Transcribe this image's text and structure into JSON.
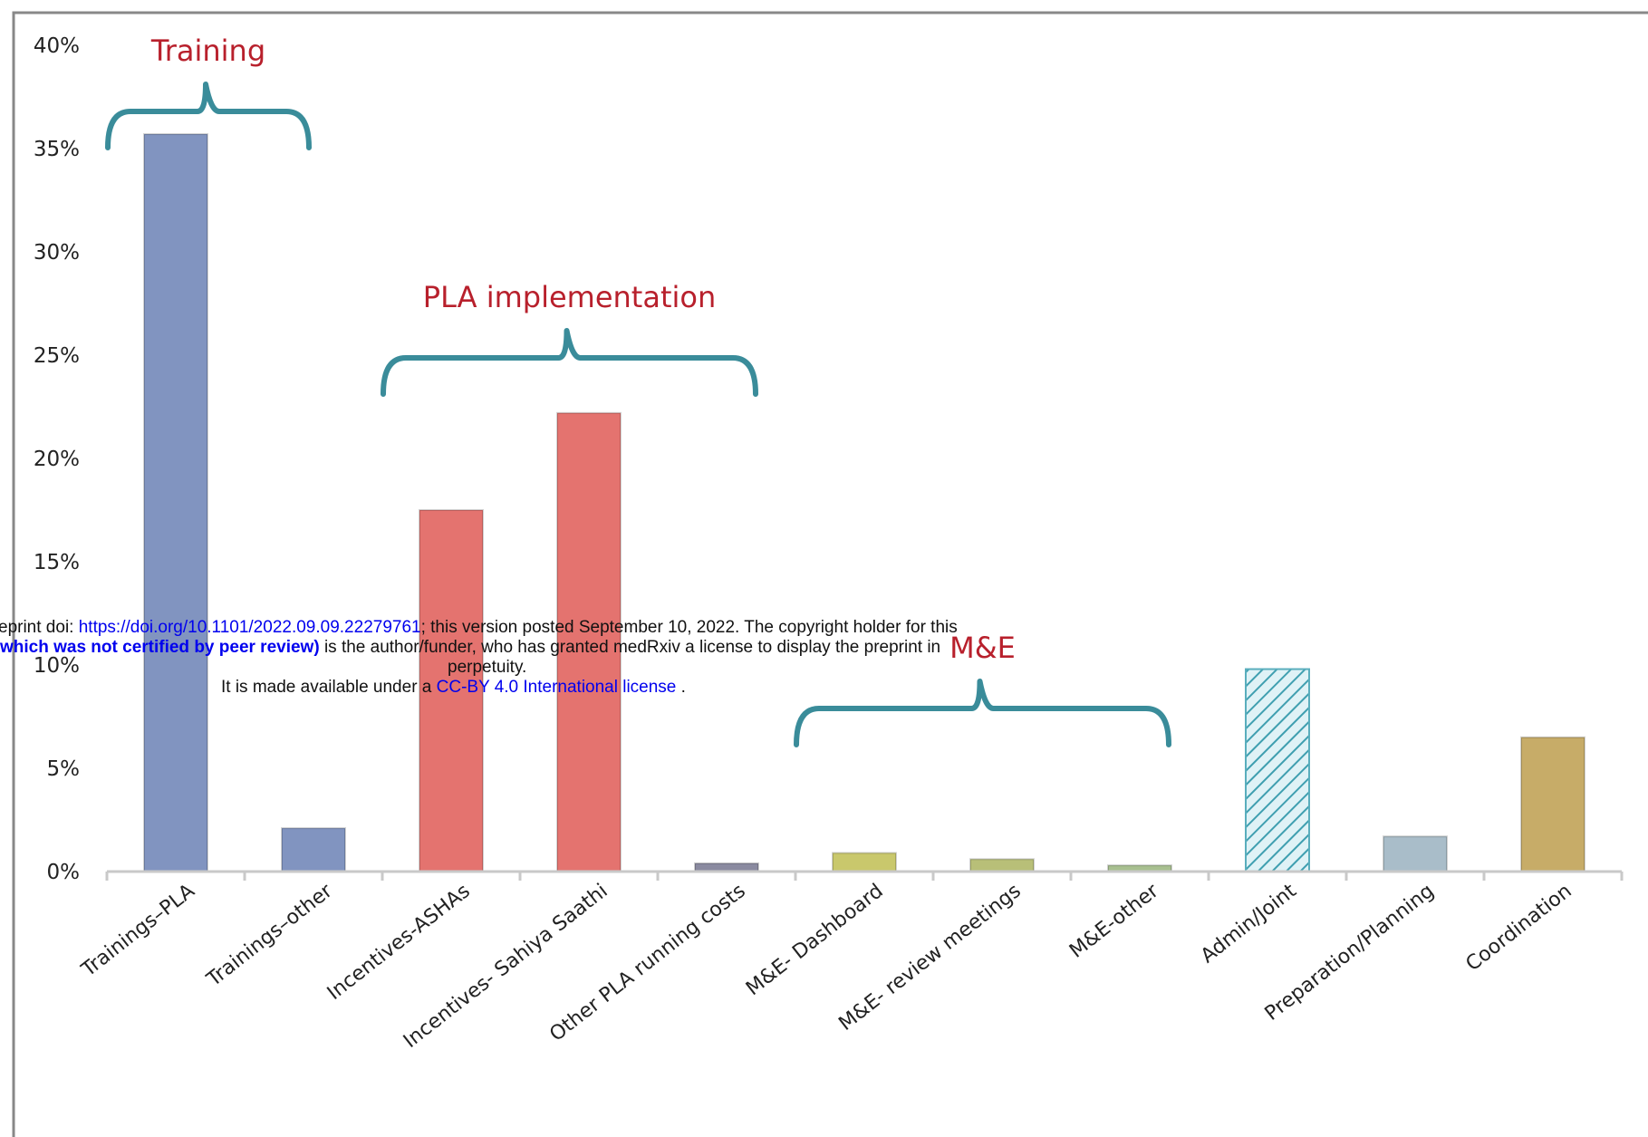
{
  "chart_data": {
    "type": "bar",
    "title": "",
    "xlabel": "",
    "ylabel": "",
    "ylim": [
      0,
      40
    ],
    "yticks": [
      "0%",
      "5%",
      "10%",
      "15%",
      "20%",
      "25%",
      "30%",
      "35%",
      "40%"
    ],
    "categories": [
      "Trainings–PLA",
      "Trainings–other",
      "Incentives-ASHAs",
      "Incentives- Sahiya Saathi",
      "Other PLA running costs",
      "M&E- Dashboard",
      "M&E- review meetings",
      "M&E-other",
      "Admin/Joint",
      "Preparation/Planning",
      "Coordination"
    ],
    "values": [
      35.7,
      2.1,
      17.5,
      22.2,
      0.4,
      0.9,
      0.6,
      0.3,
      9.8,
      1.7,
      6.5
    ],
    "colors": [
      "#8194c0",
      "#8194c0",
      "#e4736f",
      "#e4736f",
      "#8a8aa0",
      "#c9c86c",
      "#b8bf78",
      "#a8c090",
      "#8fd0dc",
      "#a9bdc9",
      "#c7ac68"
    ],
    "groups": [
      {
        "label": "Training",
        "first": 0,
        "last": 1
      },
      {
        "label": "PLA implementation",
        "first": 2,
        "last": 4
      },
      {
        "label": "M&E",
        "first": 5,
        "last": 7
      }
    ]
  },
  "banner": {
    "line1_prefix": "eprint doi: ",
    "doi_link": "https://doi.org/10.1101/2022.09.09.22279761",
    "line1_suffix": "; this version posted September 10, 2022. The copyright holder for this",
    "line2_bold": "which was not certified by peer review)",
    "line2_rest": " is the author/funder, who has granted medRxiv a license to display the preprint in",
    "line3": "perpetuity.",
    "line4_prefix": "It is made available under a ",
    "license_link": "CC-BY 4.0 International license",
    "line4_suffix": " ."
  }
}
